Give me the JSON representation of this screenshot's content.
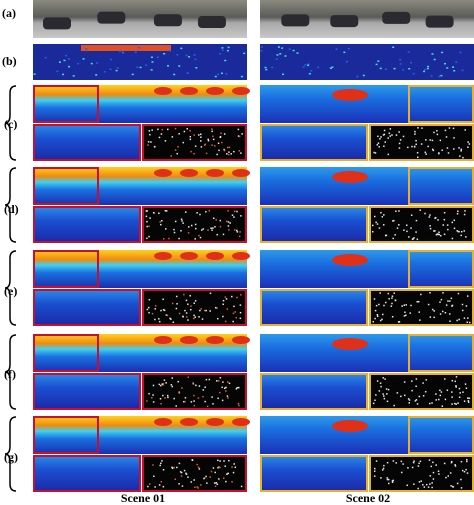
{
  "panel_labels": [
    "(a)",
    "(b)",
    "(c)",
    "(d)",
    "(e)",
    "(f)",
    "(g)"
  ],
  "scene_labels": [
    "Scene 01",
    "Scene 02"
  ]
}
